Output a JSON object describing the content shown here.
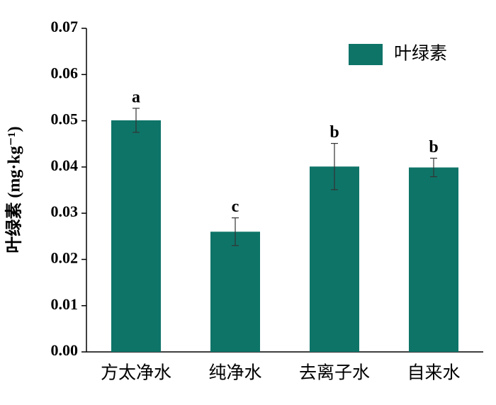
{
  "chart_data": {
    "type": "bar",
    "ylabel": "叶绿素 (mg·kg⁻¹)",
    "categories": [
      "方太净水",
      "纯净水",
      "去离子水",
      "自来水"
    ],
    "series": [
      {
        "name": "叶绿素",
        "color": "#0e7468",
        "values": [
          0.0501,
          0.026,
          0.0401,
          0.0399
        ],
        "errors": [
          0.0026,
          0.003,
          0.005,
          0.002
        ],
        "significance_labels": [
          "a",
          "c",
          "b",
          "b"
        ]
      }
    ],
    "ylim": [
      0,
      0.07
    ],
    "yticks": [
      {
        "value": 0,
        "label": "0.00"
      },
      0.01,
      0.02,
      0.03,
      0.04,
      0.05,
      0.06,
      0.07
    ],
    "legend": "upper right"
  }
}
